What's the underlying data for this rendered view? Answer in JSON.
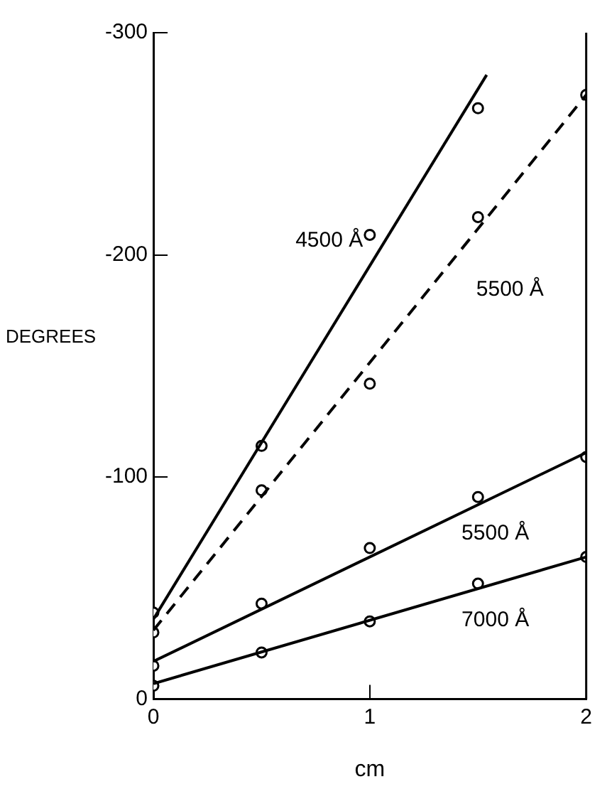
{
  "chart_data": {
    "type": "scatter",
    "xlabel": "cm",
    "ylabel": "DEGREES",
    "xlim": [
      0,
      2
    ],
    "xticks": [
      0,
      1,
      2
    ],
    "ylim": [
      0,
      -300
    ],
    "yticks": [
      0,
      -100,
      -200,
      -300
    ],
    "grid": false,
    "legend": false,
    "marker": "circle",
    "series": [
      {
        "type": "line",
        "name": "4500 Å",
        "color": "#000000",
        "line_style": "solid",
        "marker": "none",
        "x": [
          0,
          1.54
        ],
        "values": [
          -36,
          -281
        ]
      },
      {
        "type": "line",
        "name": "5500 Å",
        "color": "#000000",
        "line_style": "dashed",
        "marker": "none",
        "x": [
          0,
          2
        ],
        "values": [
          -31,
          -272
        ]
      },
      {
        "type": "line",
        "name": "5500 Å",
        "color": "#000000",
        "line_style": "solid",
        "marker": "none",
        "x": [
          0,
          2
        ],
        "values": [
          -17,
          -111
        ]
      },
      {
        "type": "line",
        "name": "7000 Å",
        "color": "#000000",
        "line_style": "solid",
        "marker": "none",
        "x": [
          0,
          2
        ],
        "values": [
          -7,
          -64
        ]
      },
      {
        "type": "scatter",
        "color": "#000000",
        "x": [
          0,
          0.5,
          1,
          1.5
        ],
        "values": [
          -39,
          -114,
          -209,
          -266
        ]
      },
      {
        "type": "scatter",
        "color": "#000000",
        "x": [
          0,
          0.5,
          1,
          1.5,
          2
        ],
        "values": [
          -30,
          -94,
          -142,
          -217,
          -272
        ]
      },
      {
        "type": "scatter",
        "color": "#000000",
        "x": [
          0,
          0.5,
          1,
          1.5,
          2
        ],
        "values": [
          -15,
          -43,
          -68,
          -91,
          -109
        ]
      },
      {
        "type": "scatter",
        "color": "#000000",
        "x": [
          0,
          0.5,
          1,
          1.5,
          2
        ],
        "values": [
          -6,
          -21,
          -35,
          -52,
          -64
        ]
      }
    ]
  }
}
